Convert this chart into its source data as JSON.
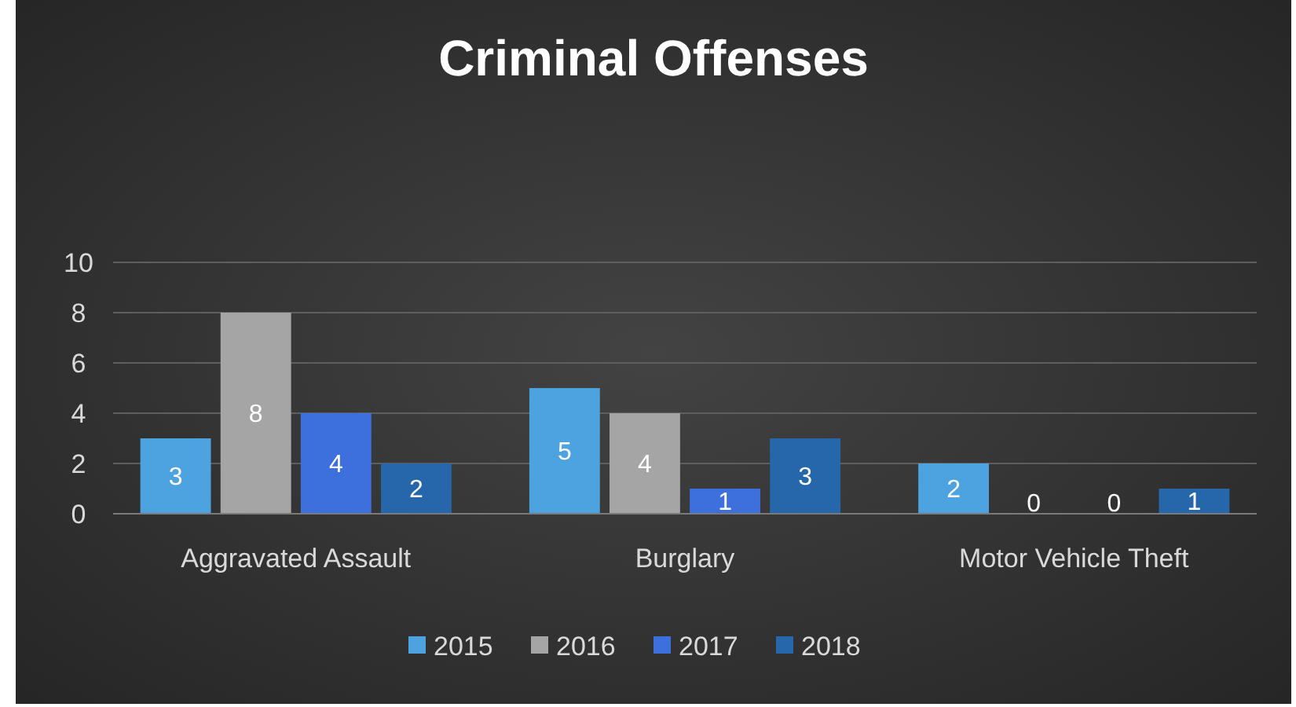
{
  "chart_data": {
    "type": "bar",
    "title": "Criminal Offenses",
    "categories": [
      "Aggravated Assault",
      "Burglary",
      "Motor Vehicle Theft"
    ],
    "series": [
      {
        "name": "2015",
        "color": "#4ca3e0",
        "values": [
          3,
          5,
          2
        ]
      },
      {
        "name": "2016",
        "color": "#a5a5a5",
        "values": [
          8,
          4,
          0
        ]
      },
      {
        "name": "2017",
        "color": "#3d6fdd",
        "values": [
          4,
          1,
          0
        ]
      },
      {
        "name": "2018",
        "color": "#2667ab",
        "values": [
          2,
          3,
          1
        ]
      }
    ],
    "ylim": [
      0,
      10
    ],
    "yticks": [
      0,
      2,
      4,
      6,
      8,
      10
    ],
    "grid": "y",
    "legend": "bottom",
    "data_labels": true
  }
}
